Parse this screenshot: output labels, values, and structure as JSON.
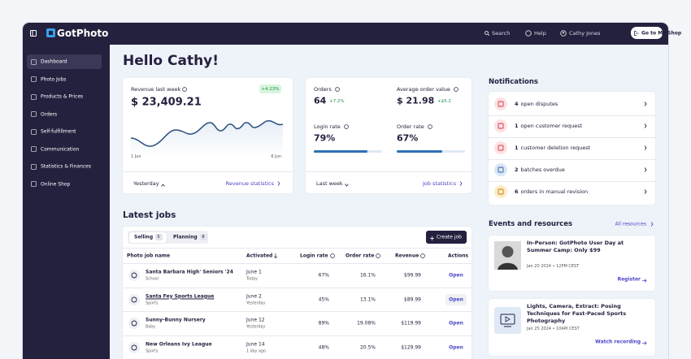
{
  "topbar": {
    "logo": "GotPhoto",
    "search": "Search",
    "help": "Help",
    "user": "Cathy Jones",
    "shop_button": "Go to My Shop"
  },
  "sidebar": {
    "items": [
      "Dashboard",
      "Photo Jobs",
      "Products & Prices",
      "Orders",
      "Self-fulfillment",
      "Communication",
      "Statistics & Finances",
      "Online Shop"
    ]
  },
  "greeting": "Hello Cathy!",
  "revenue_card": {
    "label": "Revenue last week",
    "change": "+4.23%",
    "amount": "$ 23,409.21",
    "chart_start": "1 Jun",
    "chart_end": "6 Jun",
    "period": "Yesterday",
    "link": "Revenue statistics"
  },
  "stats_card": {
    "metrics": [
      {
        "label": "Orders",
        "value": "64",
        "change": "+7.2%"
      },
      {
        "label": "Average order value",
        "value": "$ 21.98",
        "change": "+$5.2"
      },
      {
        "label": "Login rate",
        "value": "79%"
      },
      {
        "label": "Order rate",
        "value": "67%"
      }
    ],
    "period": "Last week",
    "link": "Job statistics"
  },
  "notifications": {
    "title": "Notifications",
    "items": [
      {
        "count": "4",
        "text": "open disputes"
      },
      {
        "count": "1",
        "text": "open customer request"
      },
      {
        "count": "1",
        "text": "customer deletion request"
      },
      {
        "count": "2",
        "text": "batches overdue"
      },
      {
        "count": "6",
        "text": "orders in manual revision"
      }
    ]
  },
  "events": {
    "title": "Events and resources",
    "link": "All resources",
    "items": [
      {
        "title": "In-Person: GotPhoto User Day at Summer Camp: Only $99",
        "date": "Jan 20 2024 • 12PM CEST",
        "action": "Register"
      },
      {
        "title": "Lights, Camera, Extract: Posing Techniques for Fast-Paced Sports Photography",
        "date": "Jan 25 2024 • 10AM CEST",
        "action": "Watch recording"
      }
    ]
  },
  "jobs": {
    "title": "Latest jobs",
    "tabs": [
      {
        "label": "Selling",
        "count": "5"
      },
      {
        "label": "Planning",
        "count": "8"
      }
    ],
    "create_button": "Create job",
    "table": {
      "headers": [
        "Photo job name",
        "Activated",
        "Login rate",
        "Order rate",
        "Revenue",
        "Actions"
      ],
      "rows": [
        {
          "name": "Santa Barbara High' Seniors '24",
          "category": "School",
          "date": "June 1",
          "relative": "Today",
          "login_rate": "67%",
          "order_rate": "16.1%",
          "revenue": "$99.99",
          "action": "Open"
        },
        {
          "name": "Santa Fey Sports League",
          "category": "Sports",
          "date": "June 2",
          "relative": "Yesterday",
          "login_rate": "45%",
          "order_rate": "13.1%",
          "revenue": "$89.99",
          "action": "Open"
        },
        {
          "name": "Sunny-Bunny Nursery",
          "category": "Baby",
          "date": "June 12",
          "relative": "Yesterday",
          "login_rate": "89%",
          "order_rate": "19.08%",
          "revenue": "$119.99",
          "action": "Open"
        },
        {
          "name": "New Orleans Ivy League",
          "category": "Sports",
          "date": "June 14",
          "relative": "1 day ago",
          "login_rate": "48%",
          "order_rate": "20.5%",
          "revenue": "$129.99",
          "action": "Open"
        }
      ]
    }
  }
}
